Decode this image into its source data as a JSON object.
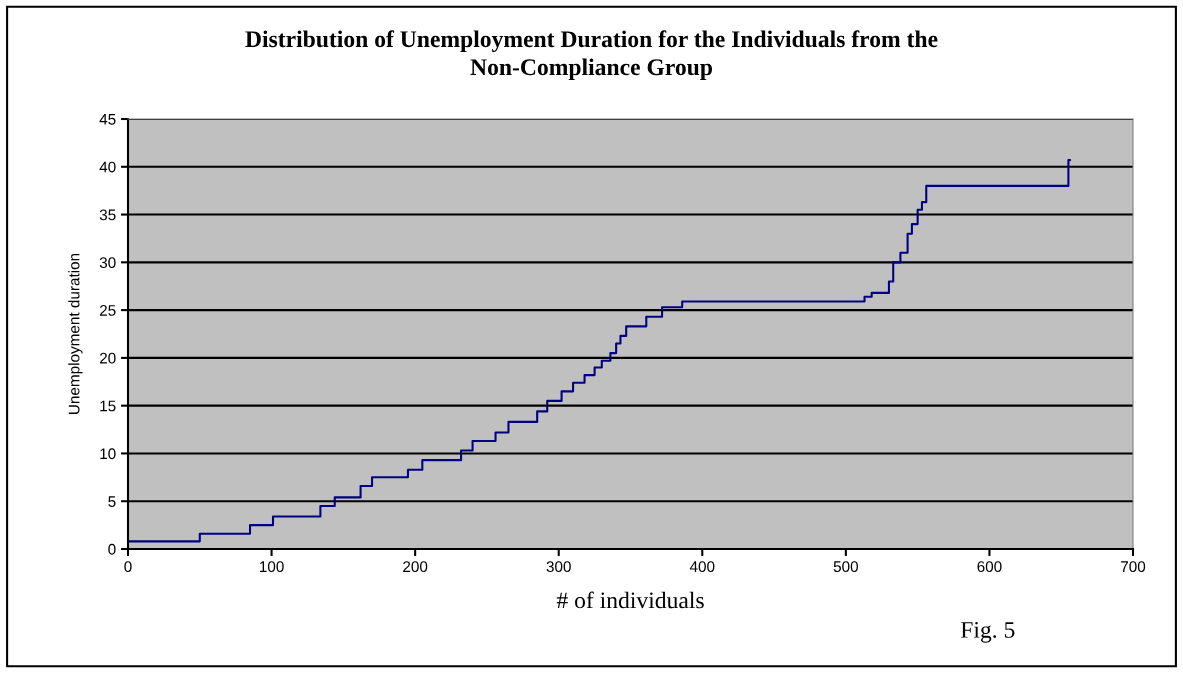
{
  "chart_data": {
    "type": "step",
    "title": "Distribution of Unemployment Duration for the Individuals from the\nNon-Compliance Group",
    "xlabel": "# of individuals",
    "ylabel": "Unemployment duration",
    "annotations": [
      "Fig. 5"
    ],
    "series": [
      {
        "color": "#000080",
        "x": [
          0,
          50,
          85,
          101,
          134,
          144,
          162,
          170,
          195,
          205,
          232,
          240,
          256,
          265,
          285,
          292,
          302,
          310,
          318,
          325,
          330,
          336,
          340,
          343,
          347,
          361,
          372,
          386,
          513,
          518,
          530,
          533,
          538,
          543,
          546,
          550,
          553,
          556,
          655,
          656
        ],
        "values": [
          0.8,
          1.6,
          2.5,
          3.4,
          4.5,
          5.4,
          6.6,
          7.5,
          8.3,
          9.3,
          10.3,
          11.3,
          12.2,
          13.3,
          14.4,
          15.5,
          16.5,
          17.4,
          18.2,
          19.0,
          19.7,
          20.5,
          21.5,
          22.3,
          23.3,
          24.3,
          25.3,
          25.9,
          26.4,
          26.8,
          28,
          30,
          31,
          33,
          34,
          35.5,
          36.3,
          38,
          40.7,
          40.7
        ]
      }
    ],
    "xlim": [
      0,
      700
    ],
    "xticks": [
      0,
      100,
      200,
      300,
      400,
      500,
      600,
      700
    ],
    "ylim": [
      0,
      45
    ],
    "yticks": [
      0,
      5,
      10,
      15,
      20,
      25,
      30,
      35,
      40,
      45
    ],
    "grid": "y",
    "legend": false
  }
}
